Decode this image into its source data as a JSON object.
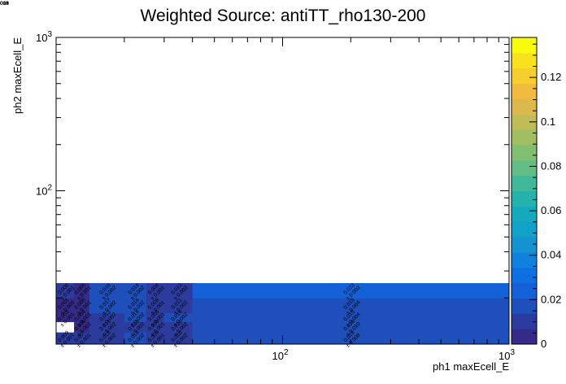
{
  "chart_data": {
    "type": "heatmap",
    "title": "Weighted Source: antiTT_rho130-200",
    "xlabel": "ph1 maxEcell_E",
    "ylabel": "ph2 maxEcell_E",
    "x_scale": "log",
    "y_scale": "log",
    "xlim": [
      10,
      1000
    ],
    "ylim": [
      10,
      1000
    ],
    "x_ticks": [
      {
        "value": 100,
        "label": "10",
        "exp": "2"
      },
      {
        "value": 1000,
        "label": "10",
        "exp": "3"
      }
    ],
    "y_ticks": [
      {
        "value": 100,
        "label": "10",
        "exp": "2"
      },
      {
        "value": 1000,
        "label": "10",
        "exp": "3"
      }
    ],
    "x_edges": [
      10,
      12,
      14,
      20,
      25,
      30,
      40,
      1000
    ],
    "y_edges": [
      10,
      12,
      14,
      16,
      20,
      25,
      1000
    ],
    "zlim": [
      0,
      0.138
    ],
    "colorbar_ticks": [
      "0",
      "0.02",
      "0.04",
      "0.06",
      "0.08",
      "0.1",
      "0.12"
    ],
    "colorbar_tick_values": [
      0,
      0.02,
      0.04,
      0.06,
      0.08,
      0.1,
      0.12
    ],
    "cells": [
      {
        "ix": 0,
        "iy": 0,
        "value": 0.009,
        "label": "0.009",
        "err": "± 0.001"
      },
      {
        "ix": 1,
        "iy": 0,
        "value": 0.007,
        "label": "0.007",
        "err": "± 0.001"
      },
      {
        "ix": 2,
        "iy": 0,
        "value": 0.013,
        "label": "0.013",
        "err": "± 0.002"
      },
      {
        "ix": 3,
        "iy": 0,
        "value": 0.016,
        "label": "0.016",
        "err": "± 0.002"
      },
      {
        "ix": 4,
        "iy": 0,
        "value": 0.009,
        "label": "0.009",
        "err": "± 0.001"
      },
      {
        "ix": 5,
        "iy": 0,
        "value": 0.01,
        "label": "0.010",
        "err": "± 0.002"
      },
      {
        "ix": 6,
        "iy": 0,
        "value": 0.016,
        "label": "0.016",
        "err": "± 0.008"
      },
      {
        "ix": 7,
        "iy": 0,
        "value": 0.138,
        "label": "0.138",
        "err": "± 0.014"
      },
      {
        "ix": 0,
        "iy": 1,
        "value": 0.0,
        "label": "",
        "err": "",
        "empty": true
      },
      {
        "ix": 1,
        "iy": 1,
        "value": 0.006,
        "label": "0.006",
        "err": "± 0.001"
      },
      {
        "ix": 2,
        "iy": 1,
        "value": 0.013,
        "label": "0.013",
        "err": "± 0.002"
      },
      {
        "ix": 3,
        "iy": 1,
        "value": 0.013,
        "label": "0.013",
        "err": "± 0.002"
      },
      {
        "ix": 4,
        "iy": 1,
        "value": 0.008,
        "label": "0.008",
        "err": "± 0.001"
      },
      {
        "ix": 5,
        "iy": 1,
        "value": 0.01,
        "label": "0.010",
        "err": "± 0.002"
      },
      {
        "ix": 6,
        "iy": 1,
        "value": 0.016,
        "label": "0.016",
        "err": "± 0.010"
      },
      {
        "ix": 7,
        "iy": 1,
        "value": 0.079,
        "label": "0.079",
        "err": "± 0.008"
      },
      {
        "ix": 0,
        "iy": 2,
        "value": 0.003,
        "label": "0.003",
        "err": "± 0.001"
      },
      {
        "ix": 1,
        "iy": 2,
        "value": 0.004,
        "label": "0.004",
        "err": "± 0.001"
      },
      {
        "ix": 2,
        "iy": 2,
        "value": 0.013,
        "label": "0.013",
        "err": "± 0.002"
      },
      {
        "ix": 3,
        "iy": 2,
        "value": 0.014,
        "label": "0.014",
        "err": "± 0.002"
      },
      {
        "ix": 4,
        "iy": 2,
        "value": 0.008,
        "label": "0.008",
        "err": "± 0.001"
      },
      {
        "ix": 5,
        "iy": 2,
        "value": 0.016,
        "label": "0.016",
        "err": "± 0.002"
      },
      {
        "ix": 6,
        "iy": 2,
        "value": 0.015,
        "label": "0.015",
        "err": "± 0.004"
      },
      {
        "ix": 7,
        "iy": 2,
        "value": 0.066,
        "label": "0.066",
        "err": "± 0.006"
      },
      {
        "ix": 0,
        "iy": 3,
        "value": 0.001,
        "label": "0.001",
        "err": "± 0.000"
      },
      {
        "ix": 1,
        "iy": 3,
        "value": 0.005,
        "label": "0.005",
        "err": "± 0.001"
      },
      {
        "ix": 2,
        "iy": 3,
        "value": 0.017,
        "label": "0.017",
        "err": "± 0.002"
      },
      {
        "ix": 3,
        "iy": 3,
        "value": 0.016,
        "label": "0.016",
        "err": "± 0.002"
      },
      {
        "ix": 4,
        "iy": 3,
        "value": 0.008,
        "label": "0.008",
        "err": "± 0.001"
      },
      {
        "ix": 5,
        "iy": 3,
        "value": 0.011,
        "label": "0.011",
        "err": "± 0.002"
      },
      {
        "ix": 6,
        "iy": 3,
        "value": 0.015,
        "label": "0.015",
        "err": "± 0.004"
      },
      {
        "ix": 7,
        "iy": 3,
        "value": 0.052,
        "label": "0.052",
        "err": "± 0.006"
      },
      {
        "ix": 0,
        "iy": 4,
        "value": 0.008,
        "label": "0.008",
        "err": "± 0.001"
      },
      {
        "ix": 1,
        "iy": 4,
        "value": 0.005,
        "label": "0.005",
        "err": "± 0.001"
      },
      {
        "ix": 2,
        "iy": 4,
        "value": 0.016,
        "label": "0.016",
        "err": "± 0.002"
      },
      {
        "ix": 3,
        "iy": 4,
        "value": 0.016,
        "label": "0.016",
        "err": "± 0.002"
      },
      {
        "ix": 4,
        "iy": 4,
        "value": 0.008,
        "label": "0.008",
        "err": "± 0.001"
      },
      {
        "ix": 5,
        "iy": 4,
        "value": 0.013,
        "label": "0.013",
        "err": "± 0.003"
      },
      {
        "ix": 6,
        "iy": 4,
        "value": 0.023,
        "label": "0.023",
        "err": "± 0.003"
      },
      {
        "ix": 7,
        "iy": 4,
        "value": 0.059,
        "label": "0.059",
        "err": "± 0.005"
      }
    ]
  },
  "colors": {
    "palette": [
      "#352a87",
      "#2c3c9e",
      "#1f4fbb",
      "#1461d7",
      "#0d6fe0",
      "#1081dc",
      "#1592d2",
      "#12a1c8",
      "#14aabb",
      "#25b1ac",
      "#42b89a",
      "#62bd86",
      "#82bf72",
      "#a1be62",
      "#c0bc57",
      "#ddb84e",
      "#f1bb3f",
      "#f7ce2f",
      "#f8e21f",
      "#f9fb0e"
    ],
    "empty": "#ffffff",
    "frame": "#000000"
  }
}
